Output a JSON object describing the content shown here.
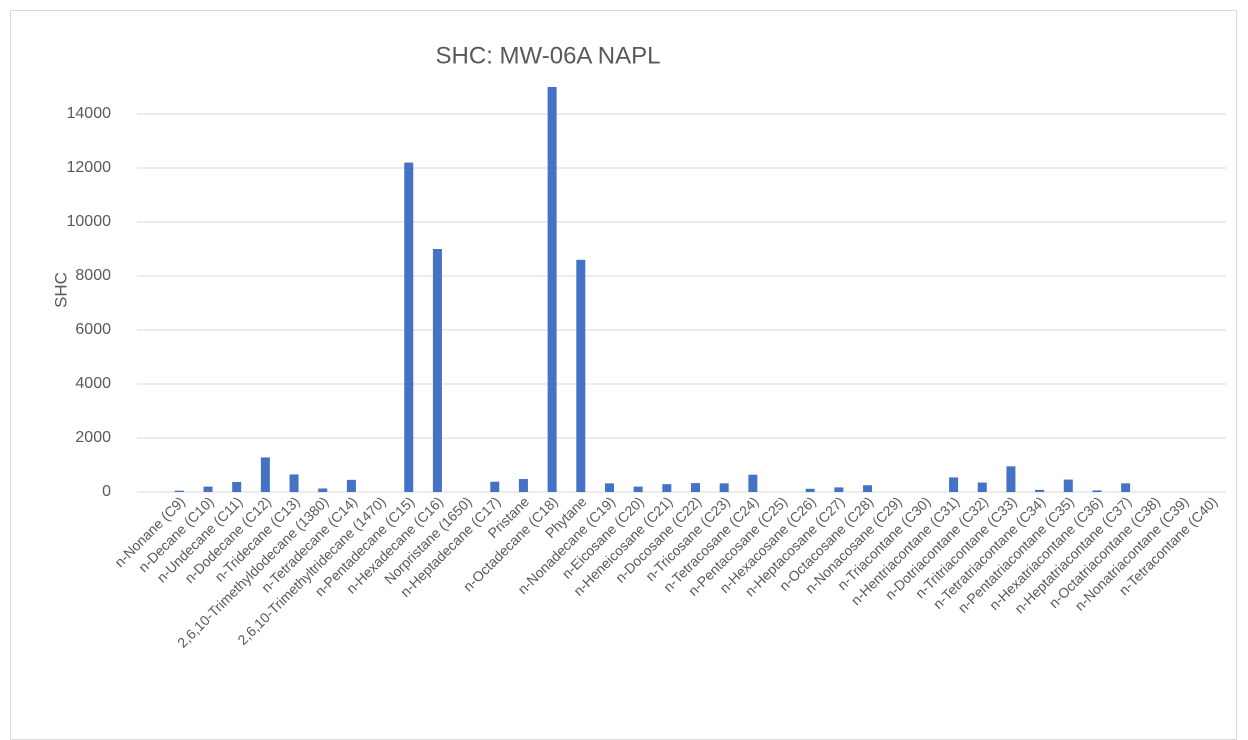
{
  "chart_data": {
    "type": "bar",
    "title": "SHC: MW-06A NAPL",
    "y_label": "SHC",
    "categories": [
      "n-Nonane (C9)",
      "n-Decane (C10)",
      "n-Undecane (C11)",
      "n-Dodecane (C12)",
      "n-Tridecane (C13)",
      "2,6,10-Trimethyldodecane (1380)",
      "n-Tetradecane (C14)",
      "2,6,10-Trimethyltridecane (1470)",
      "n-Pentadecane (C15)",
      "n-Hexadecane (C16)",
      "Norpristane (1650)",
      "n-Heptadecane (C17)",
      "Pristane",
      "n-Octadecane (C18)",
      "Phytane",
      "n-Nonadecane (C19)",
      "n-Eicosane (C20)",
      "n-Heneicosane (C21)",
      "n-Docosane (C22)",
      "n-Tricosane (C23)",
      "n-Tetracosane (C24)",
      "n-Pentacosane (C25)",
      "n-Hexacosane (C26)",
      "n-Heptacosane (C27)",
      "n-Octacosane (C28)",
      "n-Nonacosane (C29)",
      "n-Triacontane (C30)",
      "n-Hentriacontane (C31)",
      "n-Dotriacontane (C32)",
      "n-Tritriacontane (C33)",
      "n-Tetratriacontane (C34)",
      "n-Pentatriacontane (C35)",
      "n-Hexatriacontane (C36)",
      "n-Heptatriacontane (C37)",
      "n-Octatriacontane (C38)",
      "n-Nonatriacontane (C39)",
      "n-Tetracontane (C40)"
    ],
    "values": [
      50,
      200,
      370,
      1280,
      650,
      130,
      450,
      0,
      12200,
      9000,
      0,
      380,
      480,
      15000,
      8600,
      320,
      200,
      290,
      330,
      320,
      640,
      0,
      120,
      170,
      250,
      0,
      0,
      540,
      350,
      950,
      80,
      460,
      60,
      320,
      0,
      0,
      0
    ],
    "color": "#4472c4",
    "ylim": [
      0,
      15000
    ],
    "yticks": [
      0,
      2000,
      4000,
      6000,
      8000,
      10000,
      12000,
      14000
    ],
    "grid": true
  }
}
